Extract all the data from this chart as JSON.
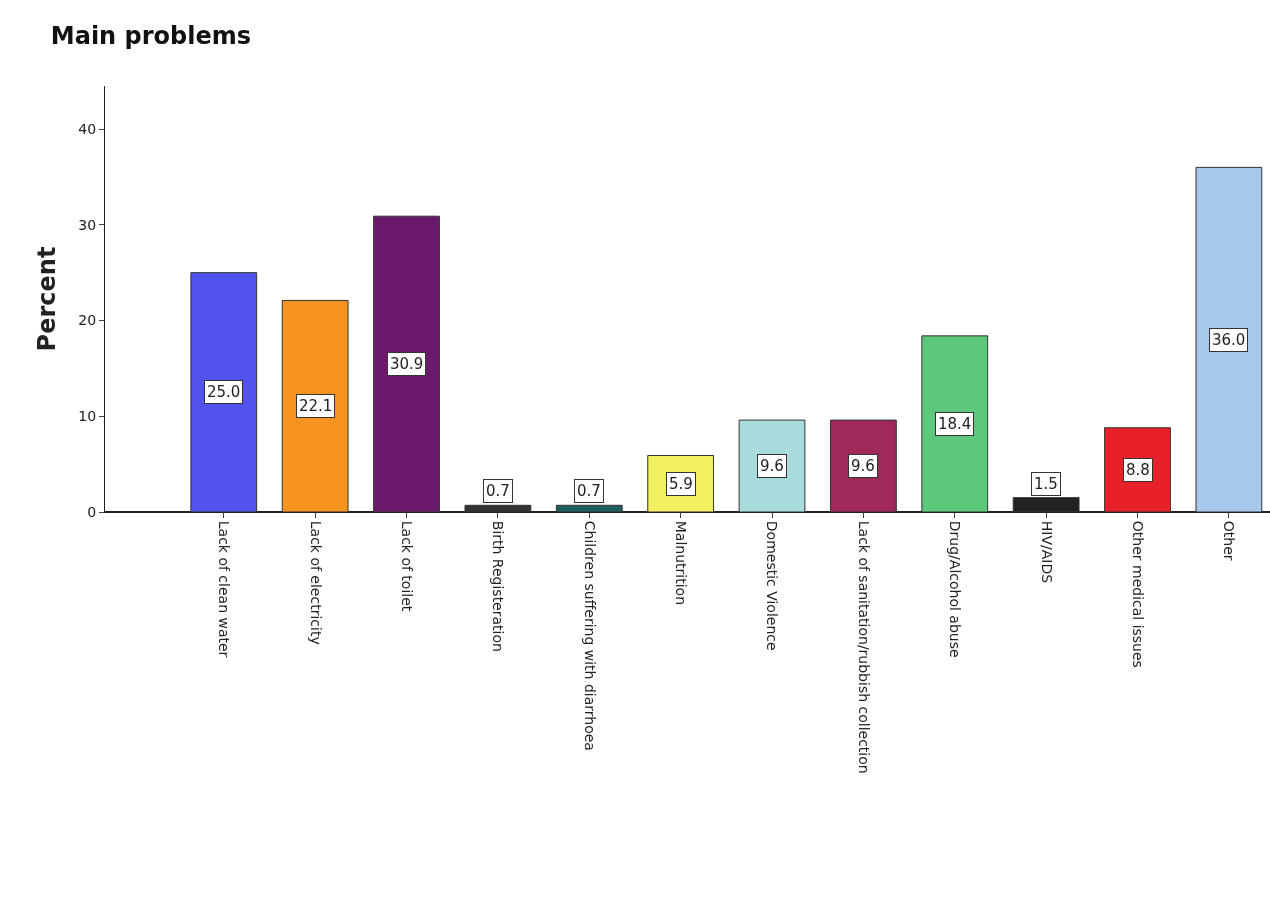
{
  "chart_data": {
    "type": "bar",
    "title": "Main problems",
    "ylabel": "Percent",
    "categories": [
      "Lack of clean water",
      "Lack of electricity",
      "Lack of toilet",
      "Birth Registeration",
      "Children suffering with diarrhoea",
      "Malnutrition",
      "Domestic Violence",
      "Lack of sanitation/rubbish collection",
      "Drug/Alcohol abuse",
      "HIV/AIDS",
      "Other medical issues",
      "Other"
    ],
    "values": [
      25.0,
      22.1,
      30.9,
      0.7,
      0.7,
      5.9,
      9.6,
      9.6,
      18.4,
      1.5,
      8.8,
      36.0
    ],
    "colors": [
      "#5252ee",
      "#f5941e",
      "#6b1a6b",
      "#333333",
      "#1f5f5f",
      "#f0f060",
      "#a8dcdc",
      "#a0285a",
      "#5cc87c",
      "#222222",
      "#e8202a",
      "#a8c8ec"
    ],
    "value_labels": [
      "25.0",
      "22.1",
      "30.9",
      "0.7",
      "0.7",
      "5.9",
      "9.6",
      "9.6",
      "18.4",
      "1.5",
      "8.8",
      "36.0"
    ],
    "ylim": [
      0,
      44.5
    ],
    "yticks": [
      0,
      10,
      20,
      30,
      40
    ],
    "legend": false
  }
}
